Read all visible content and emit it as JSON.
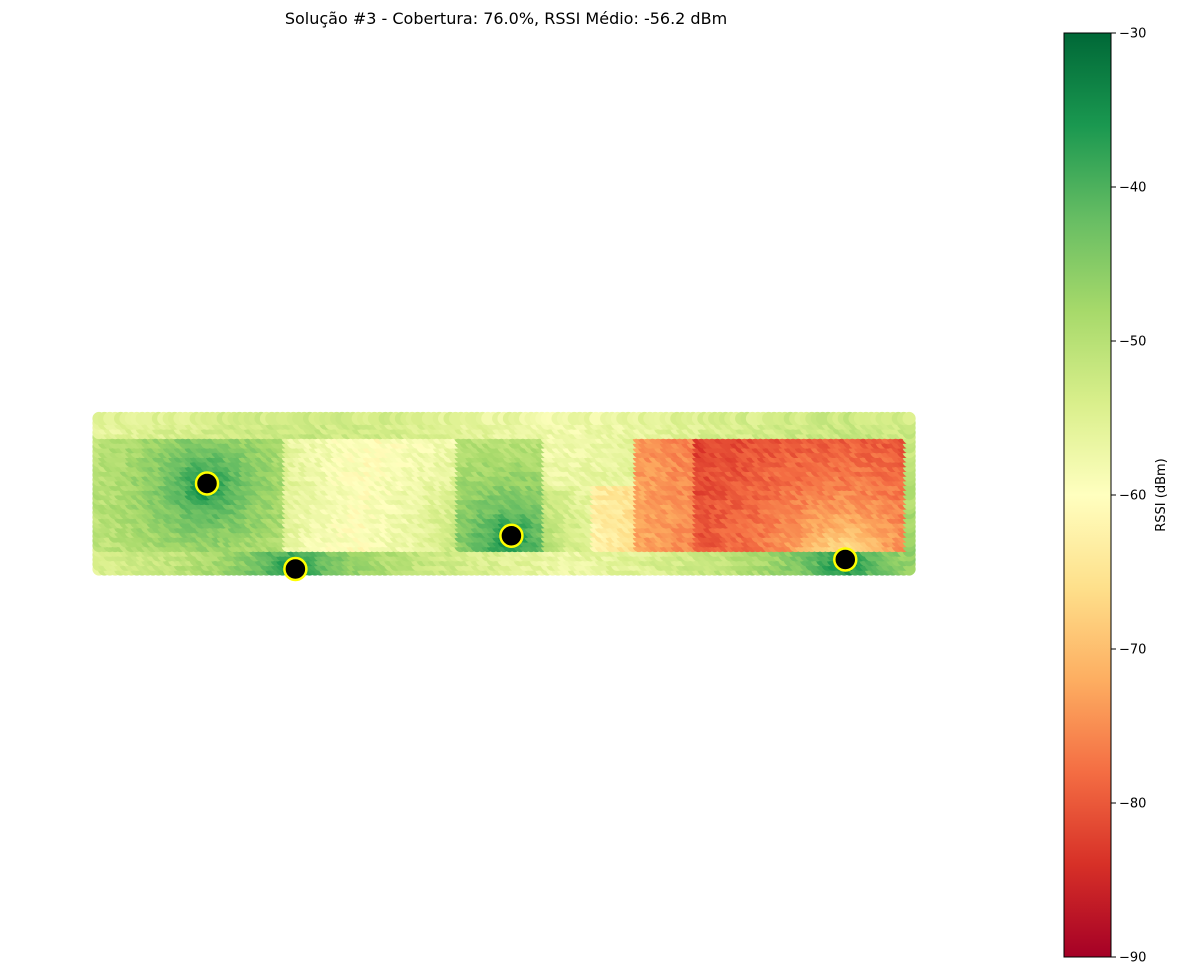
{
  "chart_data": {
    "type": "heatmap",
    "title": "Solução #3 - Cobertura: 76.0%, RSSI Médio: -56.2 dBm",
    "colorbar": {
      "label": "RSSI (dBm)",
      "range": [
        -90,
        -30
      ],
      "ticks": [
        -30,
        -40,
        -50,
        -60,
        -70,
        -80,
        -90
      ],
      "tick_labels": [
        "−30",
        "−40",
        "−50",
        "−60",
        "−70",
        "−80",
        "−90"
      ],
      "colormap": "RdYlGn",
      "colormap_stops": [
        "#a50026",
        "#d73027",
        "#f46d43",
        "#fdae61",
        "#fee08b",
        "#ffffbf",
        "#d9ef8b",
        "#a6d96a",
        "#66bd63",
        "#1a9850",
        "#006837"
      ]
    },
    "axes_visible": false,
    "grid": false,
    "access_points": [
      {
        "x": 1.1,
        "y": 0.9
      },
      {
        "x": 2.0,
        "y": 0.0
      },
      {
        "x": 4.2,
        "y": 0.35
      },
      {
        "x": 7.6,
        "y": 0.1
      }
    ],
    "ap_style": {
      "fill": "#000000",
      "edge": "#ffff00"
    },
    "coverage_grid": {
      "x_range": [
        0,
        8.3
      ],
      "y_range": [
        0,
        1.6
      ],
      "rooms": [
        {
          "x": [
            0,
            1.9
          ],
          "y": [
            0.2,
            1.4
          ]
        },
        {
          "x": [
            1.9,
            2.75
          ],
          "y": [
            0.2,
            1.4
          ]
        },
        {
          "x": [
            2.75,
            3.65
          ],
          "y": [
            0.2,
            1.4
          ]
        },
        {
          "x": [
            3.65,
            4.55
          ],
          "y": [
            0.2,
            1.4
          ]
        },
        {
          "x": [
            4.55,
            5.05
          ],
          "y": [
            0.2,
            0.9
          ]
        },
        {
          "x": [
            5.05,
            5.45
          ],
          "y": [
            0.2,
            0.9
          ]
        },
        {
          "x": [
            5.45,
            6.1
          ],
          "y": [
            0.2,
            1.4
          ]
        },
        {
          "x": [
            6.1,
            7.3
          ],
          "y": [
            0.2,
            1.4
          ]
        },
        {
          "x": [
            7.3,
            8.2
          ],
          "y": [
            0.2,
            1.4
          ]
        }
      ]
    }
  }
}
